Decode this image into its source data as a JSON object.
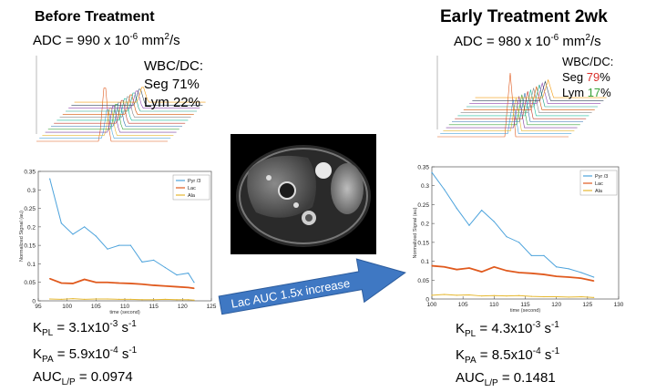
{
  "left": {
    "title": "Before Treatment",
    "adc_prefix": "ADC = 990 x 10",
    "adc_exp": "-6",
    "adc_unit": " mm",
    "adc_unit_exp": "2",
    "adc_unit_tail": "/s",
    "wbc_label": "WBC/DC:",
    "seg_label": "Seg ",
    "seg_value": "71",
    "seg_pct": "%",
    "lym_label": "Lym ",
    "lym_value": "22",
    "lym_pct": "%",
    "kpl_base": "K",
    "kpl_sub": "PL",
    "kpl_value": " = 3.1x10",
    "kpl_exp": "-3",
    "kpl_unit": " s",
    "kpl_unit_exp": "-1",
    "kpa_base": "K",
    "kpa_sub": "PA",
    "kpa_value": " = 5.9x10",
    "kpa_exp": "-4",
    "kpa_unit": " s",
    "kpa_unit_exp": "-1",
    "auc_base": "AUC",
    "auc_sub": "L/P",
    "auc_value": " = 0.0974"
  },
  "right": {
    "title": "Early Treatment 2wk",
    "adc_prefix": "ADC = 980 x 10",
    "adc_exp": "-6",
    "adc_unit": " mm",
    "adc_unit_exp": "2",
    "adc_unit_tail": "/s",
    "wbc_label": "WBC/DC:",
    "seg_label": "Seg ",
    "seg_value": "79",
    "seg_pct": "%",
    "lym_label": "Lym ",
    "lym_value": "17",
    "lym_pct": "%",
    "kpl_base": "K",
    "kpl_sub": "PL",
    "kpl_value": " = 4.3x10",
    "kpl_exp": "-3",
    "kpl_unit": " s",
    "kpl_unit_exp": "-1",
    "kpa_base": "K",
    "kpa_sub": "PA",
    "kpa_value": " = 8.5x10",
    "kpa_exp": "-4",
    "kpa_unit": " s",
    "kpa_unit_exp": "-1",
    "auc_base": "AUC",
    "auc_sub": "L/P",
    "auc_value": " = 0.1481"
  },
  "arrow_label": "Lac AUC 1.5x increase",
  "colors": {
    "pyr": "#4da3dc",
    "lac": "#e05a1e",
    "ala": "#e6b830",
    "arrow": "#3f78c3",
    "seg_value": "#d9302b",
    "lym_value": "#3aa33a"
  },
  "chart_data": [
    {
      "type": "line",
      "title": "",
      "xlabel": "time (second)",
      "ylabel": "Normalized Signal (au)",
      "xlim": [
        95,
        125
      ],
      "ylim": [
        0,
        0.35
      ],
      "xticks": [
        95,
        100,
        105,
        110,
        115,
        120,
        125
      ],
      "yticks": [
        0,
        0.05,
        0.1,
        0.15,
        0.2,
        0.25,
        0.3,
        0.35
      ],
      "legend": "top-right",
      "series": [
        {
          "name": "Pyr /3",
          "x": [
            97,
            99,
            101,
            103,
            105,
            107,
            109,
            111,
            113,
            115,
            117,
            119,
            121,
            122
          ],
          "values": [
            0.33,
            0.21,
            0.18,
            0.2,
            0.175,
            0.14,
            0.15,
            0.15,
            0.105,
            0.11,
            0.09,
            0.07,
            0.075,
            0.05
          ]
        },
        {
          "name": "Lac",
          "x": [
            97,
            99,
            101,
            103,
            105,
            107,
            109,
            111,
            113,
            115,
            117,
            119,
            121,
            122
          ],
          "values": [
            0.06,
            0.048,
            0.047,
            0.058,
            0.05,
            0.05,
            0.048,
            0.047,
            0.045,
            0.042,
            0.04,
            0.038,
            0.036,
            0.034
          ]
        },
        {
          "name": "Ala",
          "x": [
            97,
            99,
            101,
            103,
            105,
            107,
            109,
            111,
            113,
            115,
            117,
            119,
            121,
            122
          ],
          "values": [
            0.005,
            0.004,
            0.006,
            0.004,
            0.005,
            0.005,
            0.004,
            0.004,
            0.003,
            0.003,
            0.004,
            0.003,
            0.003,
            0.002
          ]
        }
      ]
    },
    {
      "type": "line",
      "title": "",
      "xlabel": "time (second)",
      "ylabel": "Normalized Signal (au)",
      "xlim": [
        100,
        130
      ],
      "ylim": [
        0,
        0.35
      ],
      "xticks": [
        100,
        105,
        110,
        115,
        120,
        125,
        130
      ],
      "yticks": [
        0,
        0.05,
        0.1,
        0.15,
        0.2,
        0.25,
        0.3,
        0.35
      ],
      "legend": "top-right",
      "series": [
        {
          "name": "Pyr /3",
          "x": [
            100,
            102,
            104,
            106,
            108,
            110,
            112,
            114,
            116,
            118,
            120,
            122,
            124,
            126
          ],
          "values": [
            0.335,
            0.29,
            0.24,
            0.195,
            0.235,
            0.205,
            0.165,
            0.15,
            0.115,
            0.115,
            0.085,
            0.08,
            0.07,
            0.058
          ]
        },
        {
          "name": "Lac",
          "x": [
            100,
            102,
            104,
            106,
            108,
            110,
            112,
            114,
            116,
            118,
            120,
            122,
            124,
            126
          ],
          "values": [
            0.088,
            0.085,
            0.078,
            0.082,
            0.072,
            0.085,
            0.075,
            0.07,
            0.068,
            0.065,
            0.06,
            0.058,
            0.055,
            0.048
          ]
        },
        {
          "name": "Ala",
          "x": [
            100,
            102,
            104,
            106,
            108,
            110,
            112,
            114,
            116,
            118,
            120,
            122,
            124,
            126
          ],
          "values": [
            0.01,
            0.012,
            0.01,
            0.011,
            0.008,
            0.009,
            0.008,
            0.009,
            0.007,
            0.006,
            0.006,
            0.005,
            0.006,
            0.004
          ]
        }
      ]
    }
  ]
}
